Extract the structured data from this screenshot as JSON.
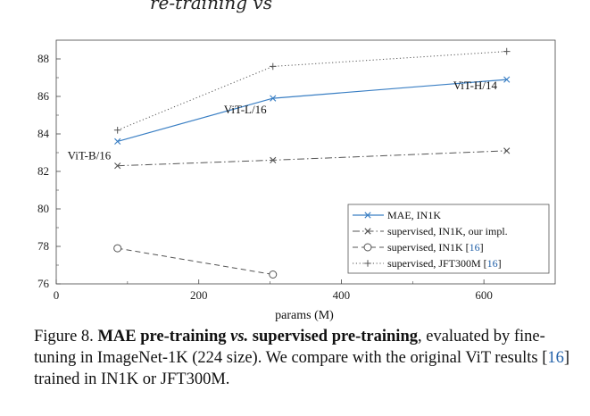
{
  "header_fragment": "re-training vs",
  "chart_data": {
    "type": "line",
    "title": "",
    "xlabel": "params (M)",
    "ylabel": "",
    "xlim": [
      0,
      700
    ],
    "ylim": [
      76,
      89
    ],
    "xticks": [
      0,
      200,
      400,
      600
    ],
    "yticks": [
      76,
      78,
      80,
      82,
      84,
      86,
      88
    ],
    "grid": false,
    "legend_position": "bottom-right",
    "series": [
      {
        "name": "MAE, IN1K",
        "color": "#3a7fc4",
        "dash": "solid",
        "marker": "x",
        "points": [
          [
            86,
            83.6
          ],
          [
            304,
            85.9
          ],
          [
            632,
            86.9
          ]
        ]
      },
      {
        "name": "supervised, IN1K, our impl.",
        "color": "#555555",
        "dash": "dashdot",
        "marker": "x",
        "points": [
          [
            86,
            82.3
          ],
          [
            304,
            82.6
          ],
          [
            632,
            83.1
          ]
        ]
      },
      {
        "name": "supervised, IN1K [16]",
        "color": "#555555",
        "dash": "dashed",
        "marker": "o",
        "points": [
          [
            86,
            77.9
          ],
          [
            304,
            76.5
          ]
        ]
      },
      {
        "name": "supervised, JFT300M [16]",
        "color": "#555555",
        "dash": "dotted",
        "marker": "+",
        "points": [
          [
            86,
            84.2
          ],
          [
            304,
            87.6
          ],
          [
            632,
            88.4
          ]
        ]
      }
    ],
    "annotations": [
      {
        "text": "ViT-B/16",
        "x": 86,
        "y": 83.6
      },
      {
        "text": "ViT-L/16",
        "x": 304,
        "y": 85.9
      },
      {
        "text": "ViT-H/14",
        "x": 632,
        "y": 86.9
      }
    ]
  },
  "legend_items": [
    {
      "pre": "MAE, IN1K",
      "cite": "",
      "post": ""
    },
    {
      "pre": "supervised, IN1K, our impl.",
      "cite": "",
      "post": ""
    },
    {
      "pre": "supervised, IN1K [",
      "cite": "16",
      "post": "]"
    },
    {
      "pre": "supervised, JFT300M [",
      "cite": "16",
      "post": "]"
    }
  ],
  "caption": {
    "figure_label": "Figure 8.",
    "bold_1": "MAE pre-training",
    "vs": "vs.",
    "bold_2": "supervised pre-training",
    "text_1": ", evaluated by fine-tuning in ImageNet-1K (224 size). We compare with the original ViT results [",
    "cite": "16",
    "text_2": "] trained in IN1K or JFT300M."
  }
}
